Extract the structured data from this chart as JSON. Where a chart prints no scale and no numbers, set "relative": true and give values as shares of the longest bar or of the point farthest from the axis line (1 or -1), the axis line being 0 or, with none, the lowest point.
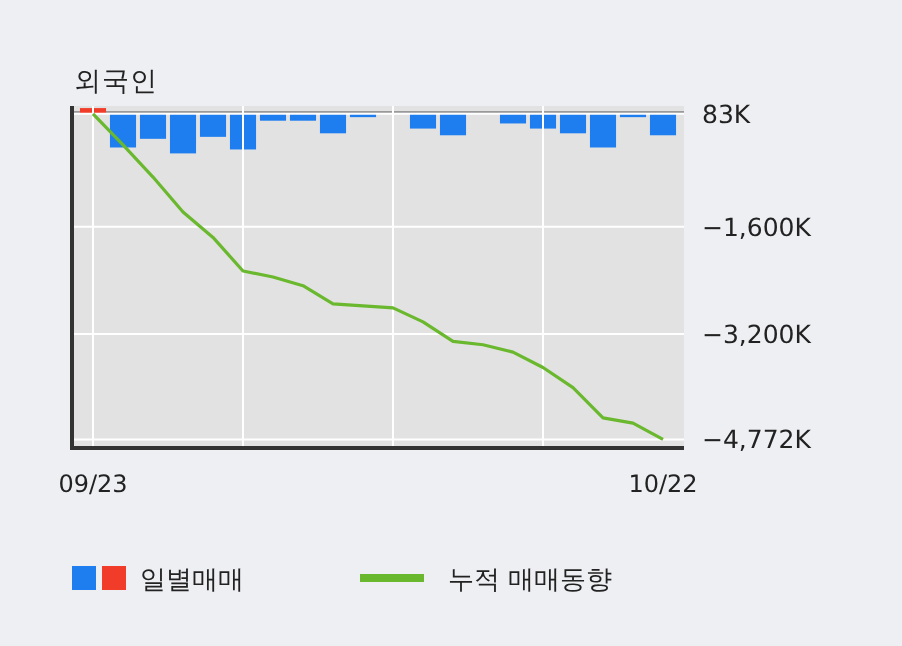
{
  "chart_data": [
    {
      "type": "bar",
      "relative": true,
      "categories": [
        "09/23",
        null,
        null,
        null,
        null,
        null,
        null,
        null,
        null,
        null,
        null,
        null,
        null,
        null,
        null,
        null,
        null,
        null,
        null,
        "10/22"
      ],
      "legend": "bottom",
      "series": [
        {
          "name": "일별매매",
          "colors": [
            "#f03c28",
            "#1e7ef0",
            "#1e7ef0",
            "#1e7ef0",
            "#1e7ef0",
            "#1e7ef0",
            "#1e7ef0",
            "#1e7ef0",
            "#1e7ef0",
            "#1e7ef0",
            "#1e7ef0",
            "#1e7ef0",
            "#1e7ef0",
            "#1e7ef0",
            "#1e7ef0",
            "#1e7ef0",
            "#1e7ef0",
            "#1e7ef0",
            "#1e7ef0",
            "#1e7ef0"
          ],
          "values": [
            0.15,
            -0.85,
            -0.63,
            -1,
            -0.58,
            -0.9,
            -0.17,
            -0.17,
            -0.49,
            -0.08,
            0,
            -0.37,
            -0.54,
            0,
            -0.24,
            -0.37,
            -0.49,
            -0.85,
            -0.08,
            -0.54
          ]
        }
      ]
    },
    {
      "type": "line",
      "title": "외국인",
      "categories": [
        null,
        null,
        null,
        null,
        null,
        null,
        null,
        null,
        null,
        null,
        null,
        null,
        null,
        null,
        null,
        null,
        null,
        null,
        null,
        null
      ],
      "ylim": [
        -4900,
        200
      ],
      "yticks": [
        {
          "value": 83,
          "label": "83K"
        },
        {
          "value": -1600,
          "label": "−1,600K"
        },
        {
          "value": -3200,
          "label": "−3,200K"
        },
        {
          "value": -4772,
          "label": "−4,772K"
        }
      ],
      "grid": true,
      "legend": "bottom",
      "marker": "none",
      "series": [
        {
          "name": "누적 매매동향",
          "color": "#6ab82e",
          "values": [
            83,
            -380,
            -860,
            -1380,
            -1760,
            -2260,
            -2350,
            -2480,
            -2750,
            -2780,
            -2810,
            -3020,
            -3310,
            -3360,
            -3470,
            -3700,
            -4000,
            -4450,
            -4530,
            -4772
          ]
        }
      ]
    }
  ]
}
